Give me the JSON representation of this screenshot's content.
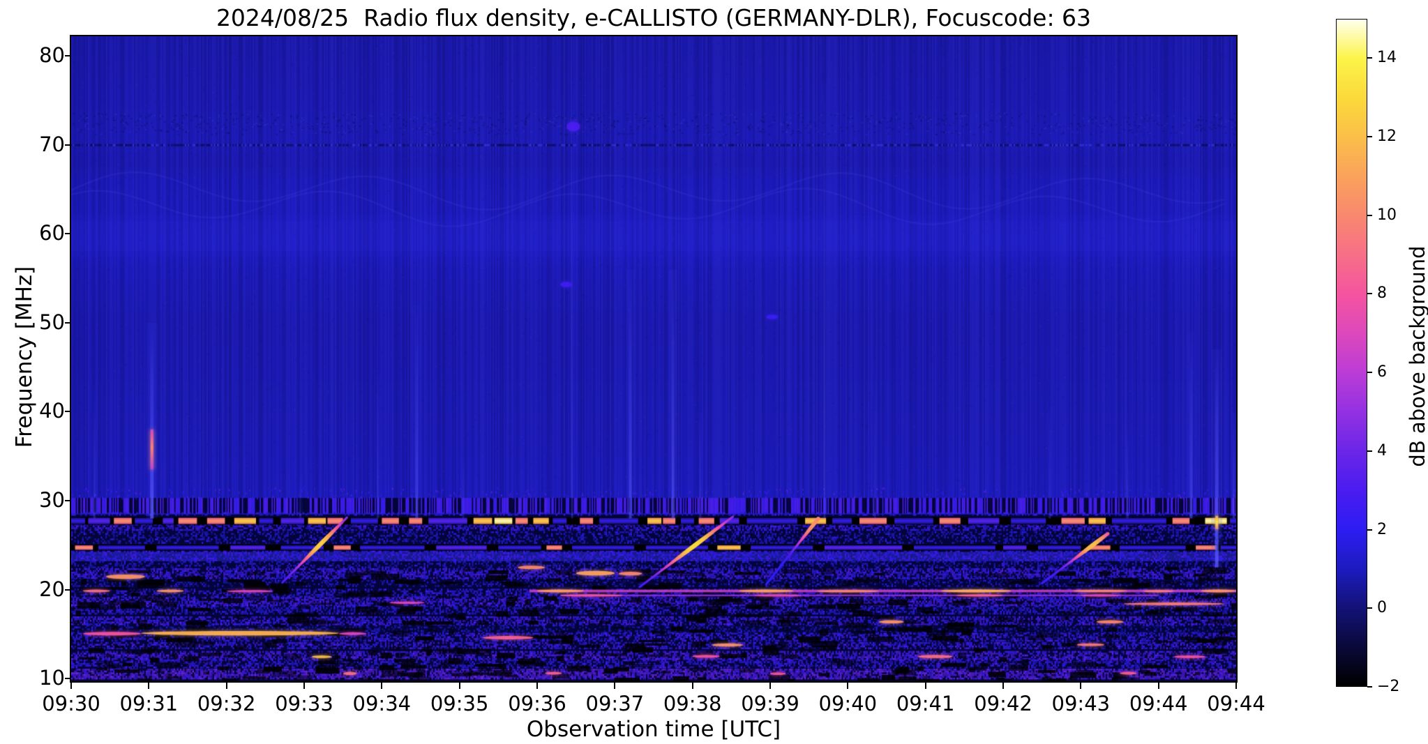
{
  "chart_data": {
    "type": "heatmap",
    "title": "2024/08/25  Radio flux density, e-CALLISTO (GERMANY-DLR), Focuscode: 63",
    "xlabel": "Observation time [UTC]",
    "ylabel": "Frequency [MHz]",
    "colorbar_label": "dB above background",
    "x_tick_labels": [
      "09:30",
      "09:31",
      "09:32",
      "09:33",
      "09:34",
      "09:35",
      "09:36",
      "09:37",
      "09:38",
      "09:39",
      "09:40",
      "09:41",
      "09:42",
      "09:43",
      "09:44",
      "09:44"
    ],
    "y_tick_values": [
      10,
      20,
      30,
      40,
      50,
      60,
      70,
      80
    ],
    "colorbar_tick_values": [
      14,
      12,
      10,
      8,
      6,
      4,
      2,
      0,
      -2
    ],
    "time_span_minutes": 15,
    "start_time_utc": "09:30",
    "end_time_utc": "09:44",
    "freq_range_mhz": [
      9.7,
      82.2
    ],
    "value_range_db": [
      -2,
      15
    ],
    "colormap_stops": [
      [
        -2,
        "#000000"
      ],
      [
        -1,
        "#0a0939"
      ],
      [
        0,
        "#131277"
      ],
      [
        1,
        "#1d1bbf"
      ],
      [
        2,
        "#2d1df2"
      ],
      [
        3,
        "#4b1cf0"
      ],
      [
        4,
        "#6b26e8"
      ],
      [
        5,
        "#9331e2"
      ],
      [
        6,
        "#bb3cd6"
      ],
      [
        7,
        "#dd48bc"
      ],
      [
        8,
        "#f4549f"
      ],
      [
        9,
        "#f76f87"
      ],
      [
        10,
        "#f9886f"
      ],
      [
        11,
        "#faa25c"
      ],
      [
        12,
        "#fbbf49"
      ],
      [
        13,
        "#fbd93b"
      ],
      [
        14,
        "#fcf448"
      ],
      [
        15,
        "#ffffee"
      ]
    ],
    "background": {
      "base_profile": [
        [
          82.2,
          0.72
        ],
        [
          76,
          0.8
        ],
        [
          71,
          0.88
        ],
        [
          68,
          0.8
        ],
        [
          66,
          0.93
        ],
        [
          62,
          1.0
        ],
        [
          59,
          1.08
        ],
        [
          56,
          0.93
        ],
        [
          50,
          0.8
        ],
        [
          40,
          0.85
        ],
        [
          31,
          0.93
        ],
        [
          28.5,
          1.0
        ]
      ],
      "column_noise": 0.26,
      "dotted_row_freq": 70.0,
      "texture_rows": [
        71.2,
        73.6
      ],
      "chevron_band": [
        62.5,
        67.0
      ],
      "soft_band": [
        58.0,
        61.5
      ]
    },
    "hatch_band": [
      28.55,
      30.3
    ],
    "wash_bands": [
      {
        "f0": 23.2,
        "f1": 24.25,
        "alpha": 0.5
      }
    ],
    "speckle_bands": [
      {
        "f0": 9.9,
        "f1": 11.05,
        "d": 0.72,
        "db": 3.4
      },
      {
        "f0": 11.15,
        "f1": 11.95,
        "d": 0.5,
        "db": 2.2
      },
      {
        "f0": 12.1,
        "f1": 13.0,
        "d": 0.6,
        "db": 2.9
      },
      {
        "f0": 13.3,
        "f1": 14.05,
        "d": 0.5,
        "db": 2.4
      },
      {
        "f0": 14.15,
        "f1": 15.0,
        "d": 0.5,
        "db": 2.3
      },
      {
        "f0": 15.05,
        "f1": 15.9,
        "d": 0.3,
        "db": 1.2
      },
      {
        "f0": 16.0,
        "f1": 16.85,
        "d": 0.55,
        "db": 2.5
      },
      {
        "f0": 17.2,
        "f1": 18.05,
        "d": 0.5,
        "db": 1.9
      },
      {
        "f0": 18.15,
        "f1": 19.05,
        "d": 0.6,
        "db": 2.7
      },
      {
        "f0": 19.1,
        "f1": 20.05,
        "d": 0.45,
        "db": 2.0
      },
      {
        "f0": 20.3,
        "f1": 21.1,
        "d": 0.3,
        "db": 1.3
      },
      {
        "f0": 21.2,
        "f1": 22.25,
        "d": 0.6,
        "db": 2.5
      },
      {
        "f0": 22.4,
        "f1": 23.1,
        "d": 0.35,
        "db": 1.5
      },
      {
        "f0": 23.2,
        "f1": 24.25,
        "d": 0.55,
        "db": 2.1
      },
      {
        "f0": 25.15,
        "f1": 26.5,
        "d": 0.35,
        "db": 1.4
      },
      {
        "f0": 26.6,
        "f1": 27.25,
        "d": 0.55,
        "db": 2.3
      },
      {
        "f0": 28.3,
        "f1": 28.55,
        "d": 0.4,
        "db": 1.8
      }
    ],
    "seg_class_db": {
      "b": 2.3,
      "B": 3.6,
      "o": 10.5,
      "y": 12.6,
      "w": 14.7
    },
    "dashed_bands": [
      {
        "f0": 27.3,
        "f1": 28.15,
        "segs": [
          [
            0.0,
            0.18,
            "b"
          ],
          [
            0.22,
            0.5,
            "B"
          ],
          [
            0.55,
            0.78,
            "o"
          ],
          [
            0.82,
            1.05,
            "b"
          ],
          [
            1.18,
            1.32,
            "B"
          ],
          [
            1.38,
            1.62,
            "o"
          ],
          [
            1.75,
            1.98,
            "o"
          ],
          [
            2.1,
            2.38,
            "y"
          ],
          [
            2.42,
            2.6,
            "b"
          ],
          [
            2.7,
            3.0,
            "B"
          ],
          [
            3.05,
            3.28,
            "y"
          ],
          [
            3.3,
            3.5,
            "o"
          ],
          [
            3.6,
            3.95,
            "b"
          ],
          [
            4.0,
            4.22,
            "o"
          ],
          [
            4.35,
            4.52,
            "o"
          ],
          [
            4.6,
            5.1,
            "B"
          ],
          [
            5.18,
            5.42,
            "y"
          ],
          [
            5.45,
            5.68,
            "w"
          ],
          [
            5.72,
            5.88,
            "o"
          ],
          [
            5.95,
            6.15,
            "y"
          ],
          [
            6.2,
            6.38,
            "b"
          ],
          [
            6.55,
            6.72,
            "o"
          ],
          [
            6.8,
            7.3,
            "b"
          ],
          [
            7.42,
            7.6,
            "y"
          ],
          [
            7.62,
            7.78,
            "o"
          ],
          [
            7.85,
            8.02,
            "b"
          ],
          [
            8.08,
            8.28,
            "o"
          ],
          [
            8.35,
            8.6,
            "B"
          ],
          [
            8.7,
            9.35,
            "b"
          ],
          [
            9.45,
            9.72,
            "y"
          ],
          [
            9.8,
            10.05,
            "b"
          ],
          [
            10.15,
            10.5,
            "o"
          ],
          [
            10.6,
            11.1,
            "b"
          ],
          [
            11.18,
            11.45,
            "o"
          ],
          [
            11.55,
            11.95,
            "B"
          ],
          [
            12.1,
            12.55,
            "b"
          ],
          [
            12.75,
            13.05,
            "o"
          ],
          [
            13.1,
            13.32,
            "y"
          ],
          [
            13.4,
            14.1,
            "b"
          ],
          [
            14.18,
            14.4,
            "o"
          ],
          [
            14.6,
            14.88,
            "w"
          ],
          [
            14.92,
            15.0,
            "b"
          ]
        ]
      },
      {
        "f0": 24.4,
        "f1": 25.05,
        "segs": [
          [
            0.05,
            0.28,
            "o"
          ],
          [
            0.35,
            0.95,
            "b"
          ],
          [
            1.1,
            1.9,
            "b"
          ],
          [
            2.05,
            2.5,
            "B"
          ],
          [
            2.7,
            3.25,
            "b"
          ],
          [
            3.38,
            3.6,
            "o"
          ],
          [
            3.72,
            4.55,
            "b"
          ],
          [
            4.7,
            5.35,
            "B"
          ],
          [
            5.5,
            6.05,
            "b"
          ],
          [
            6.12,
            6.32,
            "o"
          ],
          [
            6.45,
            7.25,
            "b"
          ],
          [
            7.4,
            8.2,
            "b"
          ],
          [
            8.32,
            8.62,
            "y"
          ],
          [
            8.75,
            9.55,
            "b"
          ],
          [
            9.7,
            10.7,
            "B"
          ],
          [
            10.85,
            11.9,
            "b"
          ],
          [
            12.0,
            12.3,
            "B"
          ],
          [
            12.45,
            13.0,
            "b"
          ],
          [
            13.1,
            13.38,
            "o"
          ],
          [
            13.5,
            14.35,
            "b"
          ],
          [
            14.48,
            14.75,
            "o"
          ],
          [
            14.8,
            15.0,
            "b"
          ]
        ]
      }
    ],
    "lines": [
      {
        "t0": 5.9,
        "t1": 15.0,
        "f0": 19.7,
        "f1": 20.0,
        "db": 6.5
      },
      {
        "t0": 6.3,
        "t1": 14.0,
        "f0": 19.25,
        "f1": 19.45,
        "db": 5.0
      }
    ],
    "hot_spots": [
      {
        "t0": 0.45,
        "t1": 0.95,
        "f0": 21.2,
        "f1": 21.7,
        "db": 10.5
      },
      {
        "t0": 5.75,
        "t1": 6.1,
        "f0": 22.3,
        "f1": 22.7,
        "db": 10
      },
      {
        "t0": 6.5,
        "t1": 7.0,
        "f0": 21.6,
        "f1": 22.1,
        "db": 11
      },
      {
        "t0": 7.05,
        "t1": 7.35,
        "f0": 21.6,
        "f1": 22.0,
        "db": 10
      },
      {
        "t0": 0.15,
        "t1": 0.5,
        "f0": 19.7,
        "f1": 20.0,
        "db": 9
      },
      {
        "t0": 1.1,
        "t1": 1.45,
        "f0": 19.7,
        "f1": 20.0,
        "db": 10.5
      },
      {
        "t0": 2.0,
        "t1": 2.6,
        "f0": 19.7,
        "f1": 19.95,
        "db": 7
      },
      {
        "t0": 6.0,
        "t1": 6.6,
        "f0": 19.7,
        "f1": 20.0,
        "db": 10.8
      },
      {
        "t0": 8.6,
        "t1": 9.3,
        "f0": 19.7,
        "f1": 20.0,
        "db": 11
      },
      {
        "t0": 9.6,
        "t1": 10.4,
        "f0": 19.7,
        "f1": 19.95,
        "db": 10
      },
      {
        "t0": 11.2,
        "t1": 12.1,
        "f0": 19.7,
        "f1": 20.0,
        "db": 11.5
      },
      {
        "t0": 12.9,
        "t1": 13.6,
        "f0": 19.75,
        "f1": 19.95,
        "db": 10
      },
      {
        "t0": 13.8,
        "t1": 14.2,
        "f0": 19.7,
        "f1": 19.95,
        "db": 9.5
      },
      {
        "t0": 14.55,
        "t1": 15.0,
        "f0": 19.7,
        "f1": 20.0,
        "db": 10.5
      },
      {
        "t0": 6.3,
        "t1": 7.1,
        "f0": 19.25,
        "f1": 19.45,
        "db": 8
      },
      {
        "t0": 8.8,
        "t1": 9.4,
        "f0": 19.25,
        "f1": 19.45,
        "db": 7
      },
      {
        "t0": 11.4,
        "t1": 12.0,
        "f0": 19.25,
        "f1": 19.45,
        "db": 8.5
      },
      {
        "t0": 13.0,
        "t1": 13.5,
        "f0": 19.25,
        "f1": 19.45,
        "db": 7
      },
      {
        "t0": 13.55,
        "t1": 14.85,
        "f0": 18.25,
        "f1": 18.55,
        "db": 9.5
      },
      {
        "t0": 4.1,
        "t1": 4.55,
        "f0": 18.4,
        "f1": 18.65,
        "db": 7
      },
      {
        "t0": 10.4,
        "t1": 10.72,
        "f0": 16.2,
        "f1": 16.55,
        "db": 10.5
      },
      {
        "t0": 13.2,
        "t1": 13.55,
        "f0": 16.2,
        "f1": 16.55,
        "db": 10
      },
      {
        "t0": 0.15,
        "t1": 0.9,
        "f0": 14.85,
        "f1": 15.25,
        "db": 8
      },
      {
        "t0": 0.9,
        "t1": 3.45,
        "f0": 14.85,
        "f1": 15.35,
        "db": 11.5
      },
      {
        "t0": 3.45,
        "t1": 3.8,
        "f0": 14.9,
        "f1": 15.2,
        "db": 7
      },
      {
        "t0": 5.3,
        "t1": 5.95,
        "f0": 14.4,
        "f1": 14.8,
        "db": 8.5
      },
      {
        "t0": 8.25,
        "t1": 8.65,
        "f0": 13.6,
        "f1": 13.95,
        "db": 10.5
      },
      {
        "t0": 12.95,
        "t1": 13.3,
        "f0": 13.65,
        "f1": 13.95,
        "db": 9.5
      },
      {
        "t0": 3.1,
        "t1": 3.35,
        "f0": 12.3,
        "f1": 12.6,
        "db": 12
      },
      {
        "t0": 8.0,
        "t1": 8.35,
        "f0": 12.35,
        "f1": 12.65,
        "db": 8
      },
      {
        "t0": 10.9,
        "t1": 11.35,
        "f0": 12.3,
        "f1": 12.65,
        "db": 9
      },
      {
        "t0": 14.2,
        "t1": 14.6,
        "f0": 12.3,
        "f1": 12.6,
        "db": 8
      },
      {
        "t0": 3.5,
        "t1": 3.68,
        "f0": 10.4,
        "f1": 10.75,
        "db": 9
      },
      {
        "t0": 6.1,
        "t1": 6.32,
        "f0": 10.45,
        "f1": 10.75,
        "db": 8.5
      },
      {
        "t0": 9.0,
        "t1": 9.2,
        "f0": 10.4,
        "f1": 10.7,
        "db": 8
      },
      {
        "t0": 13.5,
        "t1": 13.72,
        "f0": 10.45,
        "f1": 10.75,
        "db": 8.5
      },
      {
        "t0": 6.3,
        "t1": 6.45,
        "f0": 54.0,
        "f1": 54.6,
        "db": 2.6
      },
      {
        "t0": 8.95,
        "t1": 9.1,
        "f0": 50.4,
        "f1": 50.9,
        "db": 2.4
      },
      {
        "t0": 6.38,
        "t1": 6.55,
        "f0": 71.5,
        "f1": 72.6,
        "db": 3.0
      }
    ],
    "sweeps": [
      {
        "t0": 2.72,
        "f0": 20.8,
        "t1": 3.55,
        "f1": 28.1,
        "peak": 12.5,
        "edge": 2.5,
        "pp": 0.6
      },
      {
        "t0": 7.32,
        "f0": 20.3,
        "t1": 8.52,
        "f1": 28.2,
        "peak": 13,
        "edge": 2.5,
        "pp": 0.6
      },
      {
        "t0": 8.95,
        "f0": 20.6,
        "t1": 9.62,
        "f1": 28.0,
        "peak": 10.5,
        "edge": 2.0,
        "pp": 0.92
      },
      {
        "t0": 12.5,
        "f0": 20.7,
        "t1": 13.35,
        "f1": 26.3,
        "peak": 12,
        "edge": 2.5,
        "pp": 0.78
      }
    ],
    "vstreaks": [
      {
        "t": 0.3,
        "f0": 28,
        "f1": 43,
        "a": 0.3,
        "w": 3
      },
      {
        "t": 1.04,
        "f0": 28,
        "f1": 50,
        "a": 0.75,
        "w": 5,
        "core": {
          "f0": 33.5,
          "f1": 38,
          "db": 9.8
        }
      },
      {
        "t": 2.95,
        "f0": 28,
        "f1": 33,
        "a": 0.22,
        "w": 3
      },
      {
        "t": 3.95,
        "f0": 28,
        "f1": 44,
        "a": 0.28,
        "w": 3
      },
      {
        "t": 4.45,
        "f0": 28,
        "f1": 52,
        "a": 0.5,
        "w": 4
      },
      {
        "t": 5.05,
        "f0": 28,
        "f1": 35,
        "a": 0.2,
        "w": 3
      },
      {
        "t": 6.45,
        "f0": 28,
        "f1": 74,
        "a": 0.28,
        "w": 2.5
      },
      {
        "t": 7.2,
        "f0": 28,
        "f1": 56,
        "a": 0.55,
        "w": 4
      },
      {
        "t": 7.75,
        "f0": 28,
        "f1": 56,
        "a": 0.6,
        "w": 4
      },
      {
        "t": 8.1,
        "f0": 28,
        "f1": 40,
        "a": 0.28,
        "w": 3
      },
      {
        "t": 9.7,
        "f0": 28,
        "f1": 77,
        "a": 0.33,
        "w": 2.5
      },
      {
        "t": 10.35,
        "f0": 28,
        "f1": 46,
        "a": 0.22,
        "w": 3
      },
      {
        "t": 12.6,
        "f0": 28,
        "f1": 41,
        "a": 0.26,
        "w": 3
      },
      {
        "t": 13.6,
        "f0": 28,
        "f1": 39,
        "a": 0.3,
        "w": 3
      },
      {
        "t": 14.42,
        "f0": 28,
        "f1": 49,
        "a": 0.5,
        "w": 4
      },
      {
        "t": 14.75,
        "f0": 22.5,
        "f1": 47,
        "a": 0.8,
        "w": 5,
        "core": {
          "f0": 26.8,
          "f1": 28.3,
          "db": 13.5
        }
      },
      {
        "t": 14.97,
        "f0": 28,
        "f1": 40,
        "a": 0.4,
        "w": 3
      }
    ]
  }
}
